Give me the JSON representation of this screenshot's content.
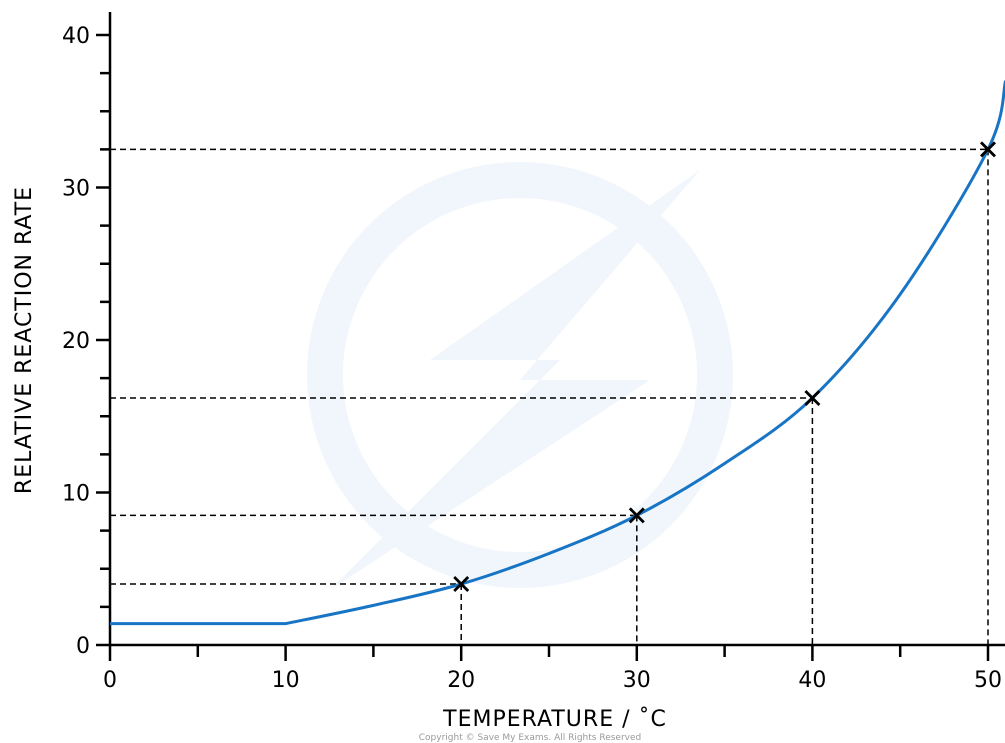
{
  "chart_data": {
    "type": "line",
    "xlabel": "TEMPERATURE / ˚C",
    "ylabel": "RELATIVE REACTION RATE",
    "xlim": [
      0,
      50
    ],
    "ylim": [
      0,
      40
    ],
    "x_ticks": [
      "0",
      "10",
      "20",
      "30",
      "40",
      "50"
    ],
    "y_ticks": [
      "0",
      "10",
      "20",
      "30",
      "40"
    ],
    "grid": false,
    "curve": {
      "x": [
        0,
        10,
        15,
        20,
        25,
        30,
        35,
        40,
        45,
        50,
        51
      ],
      "y": [
        1.4,
        1.4,
        2.6,
        4.0,
        6.0,
        8.5,
        11.9,
        16.2,
        23.0,
        32.5,
        37.0
      ]
    },
    "points": {
      "x": [
        20,
        30,
        40,
        50
      ],
      "y": [
        4.0,
        8.5,
        16.2,
        32.5
      ]
    },
    "line_color": "#1874c4",
    "copyright": "Copyright © Save My Exams. All Rights Reserved"
  }
}
